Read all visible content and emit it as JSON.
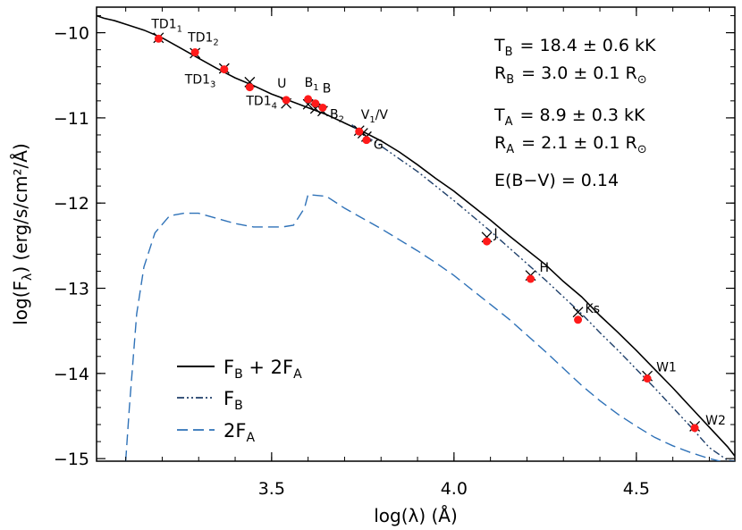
{
  "chart_data": {
    "type": "line",
    "xlabel": "log(λ) (Å)",
    "ylabel": "log(F",
    "ylabel_sub": "λ",
    "ylabel_rest": ") (erg/s/cm²/Å)",
    "xlim": [
      3.02,
      4.77
    ],
    "ylim": [
      -15.03,
      -9.7
    ],
    "x_ticks": [
      {
        "value": 3.5,
        "label": "3.5"
      },
      {
        "value": 4.0,
        "label": "4.0"
      },
      {
        "value": 4.5,
        "label": "4.5"
      }
    ],
    "y_ticks": [
      {
        "value": -10,
        "label": "−10"
      },
      {
        "value": -11,
        "label": "−11"
      },
      {
        "value": -12,
        "label": "−12"
      },
      {
        "value": -13,
        "label": "−13"
      },
      {
        "value": -14,
        "label": "−14"
      },
      {
        "value": -15,
        "label": "−15"
      }
    ],
    "series": [
      {
        "name": "F_B + 2F_A",
        "style": "solid",
        "color": "#000000",
        "x": [
          3.02,
          3.04,
          3.07,
          3.1,
          3.15,
          3.2,
          3.25,
          3.3,
          3.35,
          3.4,
          3.45,
          3.5,
          3.55,
          3.6,
          3.65,
          3.7,
          3.75,
          3.8,
          3.85,
          3.9,
          3.95,
          4.0,
          4.05,
          4.1,
          4.15,
          4.2,
          4.25,
          4.3,
          4.35,
          4.4,
          4.45,
          4.5,
          4.55,
          4.6,
          4.65,
          4.7,
          4.75,
          4.77
        ],
        "y": [
          -9.8,
          -9.83,
          -9.86,
          -9.9,
          -9.97,
          -10.06,
          -10.18,
          -10.3,
          -10.42,
          -10.53,
          -10.62,
          -10.72,
          -10.8,
          -10.88,
          -10.96,
          -11.06,
          -11.16,
          -11.27,
          -11.4,
          -11.55,
          -11.71,
          -11.86,
          -12.03,
          -12.2,
          -12.38,
          -12.55,
          -12.72,
          -12.92,
          -13.1,
          -13.32,
          -13.52,
          -13.73,
          -13.95,
          -14.17,
          -14.4,
          -14.63,
          -14.86,
          -14.97
        ]
      },
      {
        "name": "F_B",
        "style": "dash-dot-dot",
        "color": "#1e3f6a",
        "x": [
          3.72,
          3.75,
          3.8,
          3.85,
          3.9,
          3.95,
          4.0,
          4.05,
          4.1,
          4.15,
          4.2,
          4.25,
          4.3,
          4.35,
          4.4,
          4.45,
          4.5,
          4.55,
          4.6,
          4.65,
          4.7,
          4.75,
          4.77
        ],
        "y": [
          -11.08,
          -11.19,
          -11.33,
          -11.48,
          -11.63,
          -11.8,
          -11.97,
          -12.15,
          -12.33,
          -12.52,
          -12.71,
          -12.9,
          -13.1,
          -13.3,
          -13.52,
          -13.73,
          -13.95,
          -14.17,
          -14.4,
          -14.63,
          -14.87,
          -15.02,
          -15.03
        ]
      },
      {
        "name": "2F_A",
        "style": "dashed",
        "color": "#2f72b8",
        "x": [
          3.1,
          3.11,
          3.13,
          3.15,
          3.18,
          3.22,
          3.26,
          3.3,
          3.35,
          3.4,
          3.45,
          3.5,
          3.53,
          3.56,
          3.59,
          3.6,
          3.65,
          3.7,
          3.75,
          3.8,
          3.85,
          3.9,
          3.95,
          4.0,
          4.05,
          4.1,
          4.15,
          4.2,
          4.25,
          4.3,
          4.35,
          4.4,
          4.45,
          4.5,
          4.55,
          4.6,
          4.65,
          4.7,
          4.73
        ],
        "y": [
          -15.03,
          -14.4,
          -13.3,
          -12.75,
          -12.35,
          -12.15,
          -12.12,
          -12.12,
          -12.18,
          -12.24,
          -12.28,
          -12.28,
          -12.28,
          -12.26,
          -12.06,
          -11.9,
          -11.92,
          -12.06,
          -12.18,
          -12.3,
          -12.43,
          -12.56,
          -12.7,
          -12.85,
          -13.02,
          -13.19,
          -13.36,
          -13.55,
          -13.74,
          -13.94,
          -14.14,
          -14.32,
          -14.48,
          -14.62,
          -14.75,
          -14.85,
          -14.93,
          -15.0,
          -15.03
        ]
      }
    ],
    "observed": [
      {
        "label": "TD1",
        "sub": "1",
        "x": 3.19,
        "y": -10.07
      },
      {
        "label": "TD1",
        "sub": "2",
        "x": 3.29,
        "y": -10.23
      },
      {
        "label": "TD1",
        "sub": "3",
        "x": 3.37,
        "y": -10.43
      },
      {
        "label": "TD1",
        "sub": "4",
        "x": 3.44,
        "y": -10.64
      },
      {
        "label": "U",
        "sub": "",
        "x": 3.54,
        "y": -10.79
      },
      {
        "label": "B",
        "sub": "1",
        "x": 3.6,
        "y": -10.78
      },
      {
        "label": "B",
        "sub": "",
        "x": 3.62,
        "y": -10.83
      },
      {
        "label": "B",
        "sub": "2",
        "x": 3.64,
        "y": -10.88
      },
      {
        "label": "V",
        "sub": "1",
        "x": 3.74,
        "y": -11.16
      },
      {
        "label": "G",
        "sub": "",
        "x": 3.76,
        "y": -11.26
      },
      {
        "label": "J",
        "sub": "",
        "x": 4.09,
        "y": -12.45
      },
      {
        "label": "H",
        "sub": "",
        "x": 4.21,
        "y": -12.89
      },
      {
        "label": "Ks",
        "sub": "",
        "x": 4.34,
        "y": -13.37
      },
      {
        "label": "W1",
        "sub": "",
        "x": 4.53,
        "y": -14.06
      },
      {
        "label": "W2",
        "sub": "",
        "x": 4.66,
        "y": -14.64
      }
    ],
    "model_marks": [
      {
        "x": 3.19,
        "y": -10.06
      },
      {
        "x": 3.29,
        "y": -10.24
      },
      {
        "x": 3.37,
        "y": -10.42
      },
      {
        "x": 3.44,
        "y": -10.58
      },
      {
        "x": 3.54,
        "y": -10.83
      },
      {
        "x": 3.6,
        "y": -10.84
      },
      {
        "x": 3.62,
        "y": -10.89
      },
      {
        "x": 3.64,
        "y": -10.92
      },
      {
        "x": 3.74,
        "y": -11.15
      },
      {
        "x": 3.75,
        "y": -11.18
      },
      {
        "x": 3.76,
        "y": -11.22
      },
      {
        "x": 4.09,
        "y": -12.4
      },
      {
        "x": 4.21,
        "y": -12.85
      },
      {
        "x": 4.34,
        "y": -13.28
      },
      {
        "x": 4.53,
        "y": -14.03
      },
      {
        "x": 4.66,
        "y": -14.62
      }
    ],
    "v_label_extra": "/V",
    "parameters": {
      "tb_sym": "T",
      "tb_sub": "B",
      "tb_val": "= 18.4 ± 0.6 kK",
      "rb_sym": "R",
      "rb_sub": "B",
      "rb_val": "= 3.0 ± 0.1 R",
      "ta_sym": "T",
      "ta_sub": "A",
      "ta_val": "=  8.9 ± 0.3 kK",
      "ra_sym": "R",
      "ra_sub": "A",
      "ra_val": "= 2.1 ± 0.1 R",
      "sun_sub": "⊙",
      "ebv": "E(B−V) = 0.14"
    },
    "legend": [
      {
        "main": "F",
        "sub": "B",
        "rest": " + 2F",
        "sub2": "A",
        "style": "solid",
        "color": "#000000"
      },
      {
        "main": "F",
        "sub": "B",
        "rest": "",
        "sub2": "",
        "style": "dash-dot-dot",
        "color": "#1e3f6a"
      },
      {
        "main": "2F",
        "sub": "A",
        "rest": "",
        "sub2": "",
        "style": "dashed",
        "color": "#2f72b8"
      }
    ],
    "marker_color": "#ff1a1a",
    "legend_placement": "bottom-left",
    "grid": false
  }
}
